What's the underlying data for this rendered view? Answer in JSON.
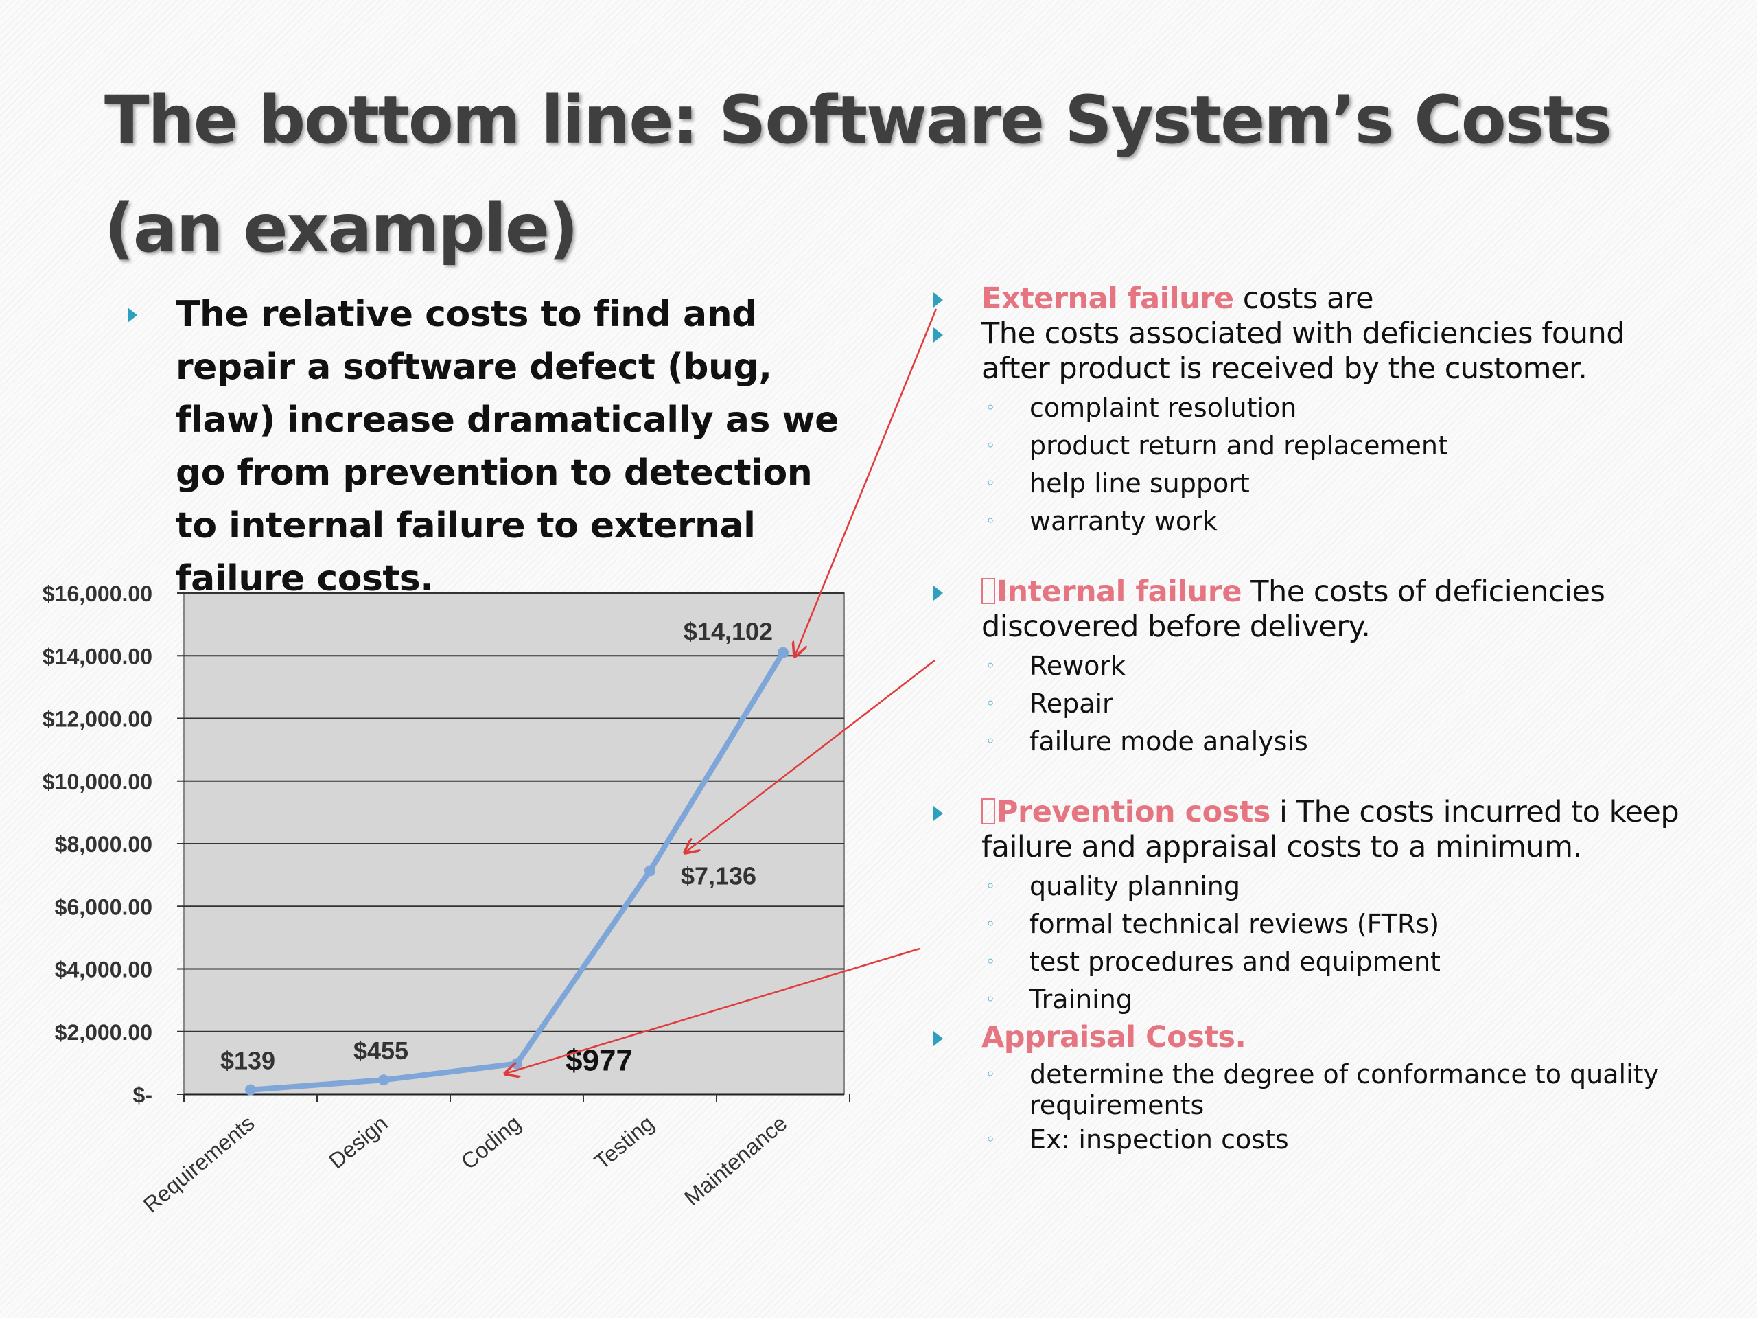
{
  "slide": {
    "title_line1": "The bottom line: Software System’s Costs",
    "title_line2": "(an example)",
    "left_bullet": "The relative costs to find and repair a software defect (bug, flaw) increase dramatically as we go from prevention to detection to internal failure to external failure costs."
  },
  "right": {
    "external": {
      "label": "External failure",
      "rest": " costs are"
    },
    "external_def": "The costs associated with deficiencies found after product is received by the customer.",
    "external_items": [
      "complaint resolution",
      "product return and replacement",
      "help line support",
      "warranty work"
    ],
    "internal": {
      "label": "Internal failure",
      "rest": " The costs of deficiencies discovered before delivery."
    },
    "internal_items": [
      "Rework",
      "Repair",
      "failure mode analysis"
    ],
    "prevention": {
      "label": "Prevention costs",
      "rest": " i The costs incurred to keep failure and appraisal costs to a minimum."
    },
    "prevention_items": [
      "quality planning",
      "formal technical reviews (FTRs)",
      "test procedures and equipment",
      "Training"
    ],
    "appraisal": {
      "label": "Appraisal Costs."
    },
    "appraisal_items": [
      "determine the degree of conformance to quality requirements",
      "Ex: inspection costs"
    ]
  },
  "colors": {
    "accent": "#e57580",
    "bullet": "#2d9fbf",
    "line": "#7fa6d9",
    "plot_bg": "#d6d6d6",
    "arrow": "#e03c3c"
  },
  "chart_data": {
    "type": "line",
    "categories": [
      "Requirements",
      "Design",
      "Coding",
      "Testing",
      "Maintenance"
    ],
    "values": [
      139,
      455,
      977,
      7136,
      14102
    ],
    "data_labels": [
      "$139",
      "$455",
      "$977",
      "$7,136",
      "$14,102"
    ],
    "ylim": [
      0,
      16000
    ],
    "y_ticks": [
      0,
      2000,
      4000,
      6000,
      8000,
      10000,
      12000,
      14000,
      16000
    ],
    "y_tick_labels": [
      "$-",
      "$2,000.00",
      "$4,000.00",
      "$6,000.00",
      "$8,000.00",
      "$10,000.00",
      "$12,000.00",
      "$14,000.00",
      "$16,000.00"
    ],
    "grid": true,
    "legend": "none"
  }
}
